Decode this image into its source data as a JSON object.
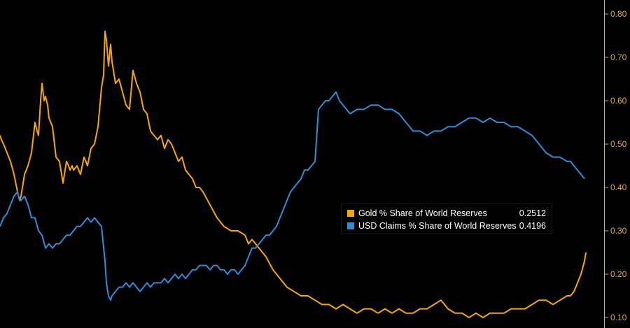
{
  "chart_data": {
    "type": "line",
    "title": "",
    "xlabel": "",
    "ylabel": "",
    "ylim": [
      0.1,
      0.8
    ],
    "yticks": [
      "0.80",
      "0.70",
      "0.60",
      "0.50",
      "0.40",
      "0.30",
      "0.20",
      "0.10"
    ],
    "y_axis_side": "right",
    "grid": false,
    "legend_position": "center-right",
    "background": "#000000",
    "axis_color": "#f2a900",
    "series": [
      {
        "name": "Gold % Share of World Reserves",
        "last_value": "0.2512",
        "color": "#f5a800",
        "x": [
          0,
          2,
          5,
          10,
          15,
          20,
          25,
          28,
          30,
          35,
          40,
          45,
          50,
          53,
          55,
          58,
          60,
          63,
          65,
          68,
          70,
          75,
          80,
          85,
          90,
          95,
          98,
          100,
          103,
          105,
          110,
          115,
          120,
          125,
          130,
          135,
          140,
          145,
          148,
          150,
          152,
          155,
          158,
          160,
          165,
          170,
          175,
          180,
          185,
          190,
          195,
          200,
          205,
          210,
          215,
          220,
          225,
          230,
          235,
          240,
          245,
          250,
          255,
          260,
          265,
          270,
          275,
          280,
          285,
          290,
          300,
          310,
          320,
          330,
          340,
          350,
          355,
          360,
          370,
          380,
          390,
          400,
          410,
          420,
          430,
          440,
          450,
          460,
          470,
          480,
          490,
          500,
          510,
          520,
          530,
          540,
          550,
          560,
          570,
          580,
          590,
          600,
          610,
          620,
          630,
          640,
          650,
          660,
          670,
          680,
          690,
          700,
          710,
          720,
          730,
          740,
          750,
          760,
          770,
          780,
          790,
          800,
          810,
          815,
          820,
          825,
          830,
          835,
          837
        ],
        "values": [
          0.52,
          0.51,
          0.5,
          0.48,
          0.46,
          0.43,
          0.39,
          0.37,
          0.38,
          0.43,
          0.45,
          0.48,
          0.55,
          0.53,
          0.52,
          0.6,
          0.64,
          0.6,
          0.61,
          0.59,
          0.56,
          0.54,
          0.47,
          0.46,
          0.41,
          0.46,
          0.45,
          0.44,
          0.45,
          0.44,
          0.45,
          0.43,
          0.47,
          0.45,
          0.49,
          0.5,
          0.54,
          0.63,
          0.66,
          0.76,
          0.74,
          0.68,
          0.73,
          0.69,
          0.64,
          0.65,
          0.62,
          0.59,
          0.58,
          0.67,
          0.64,
          0.62,
          0.58,
          0.57,
          0.53,
          0.52,
          0.51,
          0.52,
          0.49,
          0.51,
          0.5,
          0.48,
          0.46,
          0.47,
          0.44,
          0.43,
          0.42,
          0.4,
          0.4,
          0.39,
          0.36,
          0.33,
          0.31,
          0.3,
          0.3,
          0.29,
          0.27,
          0.28,
          0.26,
          0.24,
          0.21,
          0.19,
          0.17,
          0.16,
          0.15,
          0.15,
          0.14,
          0.13,
          0.13,
          0.12,
          0.13,
          0.12,
          0.11,
          0.12,
          0.12,
          0.11,
          0.12,
          0.11,
          0.12,
          0.11,
          0.11,
          0.12,
          0.12,
          0.13,
          0.14,
          0.12,
          0.11,
          0.11,
          0.1,
          0.11,
          0.1,
          0.11,
          0.11,
          0.11,
          0.12,
          0.12,
          0.12,
          0.13,
          0.14,
          0.14,
          0.13,
          0.14,
          0.15,
          0.15,
          0.16,
          0.18,
          0.2,
          0.23,
          0.25
        ]
      },
      {
        "name": "USD Claims % Share of World Reserves",
        "last_value": "0.4196",
        "color": "#2f8dd6",
        "x": [
          0,
          5,
          10,
          15,
          20,
          25,
          28,
          30,
          35,
          40,
          45,
          50,
          55,
          60,
          65,
          70,
          75,
          80,
          85,
          90,
          95,
          100,
          105,
          110,
          115,
          120,
          125,
          130,
          135,
          140,
          145,
          150,
          152,
          155,
          158,
          160,
          165,
          170,
          175,
          180,
          185,
          190,
          195,
          200,
          205,
          210,
          215,
          220,
          225,
          230,
          235,
          240,
          245,
          250,
          255,
          260,
          265,
          270,
          275,
          280,
          285,
          290,
          295,
          300,
          305,
          310,
          315,
          320,
          325,
          330,
          335,
          340,
          345,
          350,
          355,
          360,
          365,
          370,
          375,
          380,
          385,
          390,
          395,
          400,
          405,
          410,
          415,
          420,
          425,
          430,
          435,
          440,
          445,
          450,
          455,
          460,
          465,
          470,
          475,
          480,
          485,
          490,
          495,
          500,
          510,
          520,
          530,
          540,
          550,
          560,
          570,
          580,
          590,
          600,
          610,
          620,
          630,
          640,
          650,
          660,
          670,
          680,
          690,
          700,
          710,
          720,
          730,
          740,
          750,
          760,
          770,
          780,
          790,
          800,
          810,
          815,
          820,
          825,
          830,
          835
        ],
        "values": [
          0.31,
          0.33,
          0.34,
          0.36,
          0.38,
          0.39,
          0.37,
          0.37,
          0.38,
          0.36,
          0.33,
          0.33,
          0.3,
          0.29,
          0.26,
          0.27,
          0.26,
          0.27,
          0.27,
          0.28,
          0.29,
          0.29,
          0.3,
          0.31,
          0.31,
          0.32,
          0.33,
          0.32,
          0.33,
          0.32,
          0.31,
          0.23,
          0.18,
          0.15,
          0.14,
          0.15,
          0.16,
          0.17,
          0.17,
          0.18,
          0.17,
          0.18,
          0.17,
          0.16,
          0.17,
          0.18,
          0.17,
          0.18,
          0.18,
          0.18,
          0.19,
          0.18,
          0.19,
          0.2,
          0.19,
          0.2,
          0.19,
          0.2,
          0.21,
          0.21,
          0.22,
          0.22,
          0.22,
          0.21,
          0.22,
          0.22,
          0.21,
          0.21,
          0.2,
          0.21,
          0.21,
          0.2,
          0.21,
          0.22,
          0.24,
          0.26,
          0.26,
          0.27,
          0.28,
          0.29,
          0.29,
          0.3,
          0.31,
          0.33,
          0.35,
          0.37,
          0.39,
          0.4,
          0.41,
          0.42,
          0.44,
          0.44,
          0.45,
          0.46,
          0.58,
          0.59,
          0.6,
          0.6,
          0.61,
          0.62,
          0.6,
          0.59,
          0.58,
          0.57,
          0.58,
          0.58,
          0.59,
          0.59,
          0.58,
          0.58,
          0.57,
          0.55,
          0.53,
          0.53,
          0.52,
          0.53,
          0.53,
          0.54,
          0.54,
          0.55,
          0.56,
          0.56,
          0.55,
          0.56,
          0.55,
          0.55,
          0.54,
          0.54,
          0.53,
          0.52,
          0.5,
          0.48,
          0.47,
          0.47,
          0.46,
          0.46,
          0.45,
          0.44,
          0.43,
          0.42
        ]
      }
    ]
  }
}
